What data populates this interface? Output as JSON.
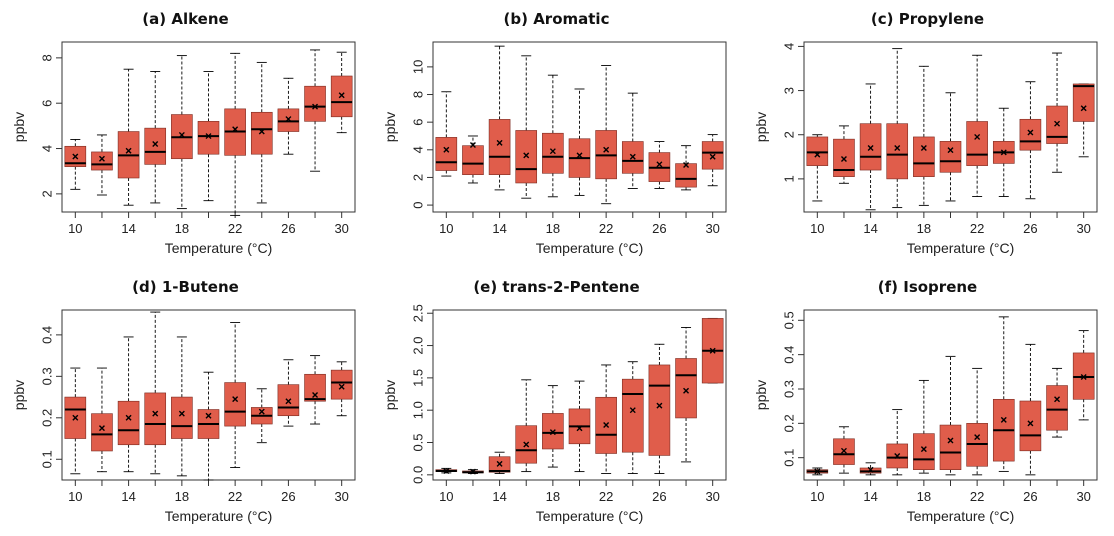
{
  "figure": {
    "box_color": "#e05d4b",
    "line_color": "#000000"
  },
  "chart_data": [
    {
      "type": "box",
      "title": "(a) Alkene",
      "xlabel": "Temperature (°C)",
      "ylabel": "ppbv",
      "x": [
        10,
        12,
        14,
        16,
        18,
        20,
        22,
        24,
        26,
        28,
        30
      ],
      "xtick_labels": [
        "10",
        "14",
        "18",
        "22",
        "26",
        "30"
      ],
      "xtick_values": [
        10,
        14,
        18,
        22,
        26,
        30
      ],
      "yticks": [
        2,
        4,
        6,
        8
      ],
      "ylim": [
        1.2,
        8.7
      ],
      "boxes": [
        {
          "x": 10,
          "min": 2.2,
          "q1": 3.2,
          "median": 3.35,
          "q3": 4.1,
          "max": 4.4,
          "mean": 3.65
        },
        {
          "x": 12,
          "min": 1.95,
          "q1": 3.05,
          "median": 3.3,
          "q3": 3.85,
          "max": 4.6,
          "mean": 3.55
        },
        {
          "x": 14,
          "min": 1.5,
          "q1": 2.7,
          "median": 3.7,
          "q3": 4.75,
          "max": 7.5,
          "mean": 3.9
        },
        {
          "x": 16,
          "min": 1.6,
          "q1": 3.3,
          "median": 3.85,
          "q3": 4.9,
          "max": 7.4,
          "mean": 4.2
        },
        {
          "x": 18,
          "min": 1.35,
          "q1": 3.55,
          "median": 4.5,
          "q3": 5.5,
          "max": 8.1,
          "mean": 4.6
        },
        {
          "x": 20,
          "min": 1.7,
          "q1": 3.75,
          "median": 4.55,
          "q3": 5.2,
          "max": 7.4,
          "mean": 4.55
        },
        {
          "x": 22,
          "min": 1.05,
          "q1": 3.7,
          "median": 4.75,
          "q3": 5.75,
          "max": 8.2,
          "mean": 4.85
        },
        {
          "x": 24,
          "min": 1.6,
          "q1": 3.75,
          "median": 4.85,
          "q3": 5.6,
          "max": 7.8,
          "mean": 4.75
        },
        {
          "x": 26,
          "min": 3.75,
          "q1": 4.75,
          "median": 5.2,
          "q3": 5.75,
          "max": 7.1,
          "mean": 5.3
        },
        {
          "x": 28,
          "min": 3.0,
          "q1": 5.2,
          "median": 5.85,
          "q3": 6.75,
          "max": 8.35,
          "mean": 5.85
        },
        {
          "x": 30,
          "min": 4.7,
          "q1": 5.4,
          "median": 6.05,
          "q3": 7.2,
          "max": 8.25,
          "mean": 6.35
        }
      ]
    },
    {
      "type": "box",
      "title": "(b) Aromatic",
      "xlabel": "Temperature (°C)",
      "ylabel": "ppbv",
      "x": [
        10,
        12,
        14,
        16,
        18,
        20,
        22,
        24,
        26,
        28,
        30
      ],
      "xtick_labels": [
        "10",
        "14",
        "18",
        "22",
        "26",
        "30"
      ],
      "xtick_values": [
        10,
        14,
        18,
        22,
        26,
        30
      ],
      "yticks": [
        0,
        2,
        4,
        6,
        8,
        10
      ],
      "ylim": [
        -0.5,
        11.8
      ],
      "boxes": [
        {
          "x": 10,
          "min": 2.1,
          "q1": 2.5,
          "median": 3.1,
          "q3": 4.9,
          "max": 8.2,
          "mean": 4.0
        },
        {
          "x": 12,
          "min": 1.6,
          "q1": 2.2,
          "median": 3.0,
          "q3": 4.3,
          "max": 5.0,
          "mean": 4.35
        },
        {
          "x": 14,
          "min": 1.1,
          "q1": 2.2,
          "median": 3.5,
          "q3": 6.2,
          "max": 11.5,
          "mean": 4.5
        },
        {
          "x": 16,
          "min": 0.5,
          "q1": 1.6,
          "median": 2.6,
          "q3": 5.4,
          "max": 10.8,
          "mean": 3.6
        },
        {
          "x": 18,
          "min": 0.6,
          "q1": 2.3,
          "median": 3.5,
          "q3": 5.2,
          "max": 9.4,
          "mean": 3.9
        },
        {
          "x": 20,
          "min": 0.7,
          "q1": 2.0,
          "median": 3.4,
          "q3": 4.8,
          "max": 8.4,
          "mean": 3.6
        },
        {
          "x": 22,
          "min": 0.1,
          "q1": 1.9,
          "median": 3.6,
          "q3": 5.4,
          "max": 10.1,
          "mean": 4.0
        },
        {
          "x": 24,
          "min": 1.2,
          "q1": 2.3,
          "median": 3.2,
          "q3": 4.6,
          "max": 8.1,
          "mean": 3.5
        },
        {
          "x": 26,
          "min": 1.2,
          "q1": 1.7,
          "median": 2.7,
          "q3": 3.8,
          "max": 4.6,
          "mean": 2.95
        },
        {
          "x": 28,
          "min": 1.1,
          "q1": 1.3,
          "median": 1.9,
          "q3": 3.0,
          "max": 4.3,
          "mean": 2.9
        },
        {
          "x": 30,
          "min": 1.4,
          "q1": 2.6,
          "median": 3.8,
          "q3": 4.6,
          "max": 5.1,
          "mean": 3.5
        }
      ]
    },
    {
      "type": "box",
      "title": "(c) Propylene",
      "xlabel": "Temperature (°C)",
      "ylabel": "ppbv",
      "x": [
        10,
        12,
        14,
        16,
        18,
        20,
        22,
        24,
        26,
        28,
        30
      ],
      "xtick_labels": [
        "10",
        "14",
        "18",
        "22",
        "26",
        "30"
      ],
      "xtick_values": [
        10,
        14,
        18,
        22,
        26,
        30
      ],
      "yticks": [
        1,
        2,
        3,
        4
      ],
      "ylim": [
        0.25,
        4.1
      ],
      "boxes": [
        {
          "x": 10,
          "min": 0.5,
          "q1": 1.3,
          "median": 1.6,
          "q3": 1.95,
          "max": 2.0,
          "mean": 1.55
        },
        {
          "x": 12,
          "min": 0.9,
          "q1": 1.05,
          "median": 1.2,
          "q3": 1.9,
          "max": 2.2,
          "mean": 1.45
        },
        {
          "x": 14,
          "min": 0.3,
          "q1": 1.2,
          "median": 1.5,
          "q3": 2.25,
          "max": 3.15,
          "mean": 1.7
        },
        {
          "x": 16,
          "min": 0.35,
          "q1": 1.0,
          "median": 1.55,
          "q3": 2.25,
          "max": 3.95,
          "mean": 1.7
        },
        {
          "x": 18,
          "min": 0.4,
          "q1": 1.05,
          "median": 1.35,
          "q3": 1.95,
          "max": 3.55,
          "mean": 1.7
        },
        {
          "x": 20,
          "min": 0.5,
          "q1": 1.15,
          "median": 1.4,
          "q3": 1.85,
          "max": 2.95,
          "mean": 1.65
        },
        {
          "x": 22,
          "min": 0.6,
          "q1": 1.3,
          "median": 1.55,
          "q3": 2.3,
          "max": 3.8,
          "mean": 1.95
        },
        {
          "x": 24,
          "min": 0.6,
          "q1": 1.35,
          "median": 1.6,
          "q3": 1.85,
          "max": 2.6,
          "mean": 1.6
        },
        {
          "x": 26,
          "min": 0.55,
          "q1": 1.65,
          "median": 1.85,
          "q3": 2.35,
          "max": 3.2,
          "mean": 2.05
        },
        {
          "x": 28,
          "min": 1.15,
          "q1": 1.8,
          "median": 1.95,
          "q3": 2.65,
          "max": 3.85,
          "mean": 2.25
        },
        {
          "x": 30,
          "min": 1.5,
          "q1": 2.3,
          "median": 3.1,
          "q3": 3.15,
          "max": 3.15,
          "mean": 2.6
        }
      ]
    },
    {
      "type": "box",
      "title": "(d) 1-Butene",
      "xlabel": "Temperature (°C)",
      "ylabel": "ppbv",
      "x": [
        10,
        12,
        14,
        16,
        18,
        20,
        22,
        24,
        26,
        28,
        30
      ],
      "xtick_labels": [
        "10",
        "14",
        "18",
        "22",
        "26",
        "30"
      ],
      "xtick_values": [
        10,
        14,
        18,
        22,
        26,
        30
      ],
      "yticks": [
        0.1,
        0.2,
        0.3,
        0.4
      ],
      "ylim": [
        0.05,
        0.46
      ],
      "boxes": [
        {
          "x": 10,
          "min": 0.065,
          "q1": 0.15,
          "median": 0.22,
          "q3": 0.25,
          "max": 0.32,
          "mean": 0.2
        },
        {
          "x": 12,
          "min": 0.07,
          "q1": 0.12,
          "median": 0.16,
          "q3": 0.21,
          "max": 0.32,
          "mean": 0.175
        },
        {
          "x": 14,
          "min": 0.07,
          "q1": 0.135,
          "median": 0.17,
          "q3": 0.24,
          "max": 0.395,
          "mean": 0.2
        },
        {
          "x": 16,
          "min": 0.065,
          "q1": 0.135,
          "median": 0.185,
          "q3": 0.26,
          "max": 0.455,
          "mean": 0.21
        },
        {
          "x": 18,
          "min": 0.06,
          "q1": 0.15,
          "median": 0.18,
          "q3": 0.25,
          "max": 0.395,
          "mean": 0.21
        },
        {
          "x": 20,
          "min": 0.05,
          "q1": 0.15,
          "median": 0.185,
          "q3": 0.22,
          "max": 0.31,
          "mean": 0.205
        },
        {
          "x": 22,
          "min": 0.08,
          "q1": 0.18,
          "median": 0.215,
          "q3": 0.285,
          "max": 0.43,
          "mean": 0.245
        },
        {
          "x": 24,
          "min": 0.14,
          "q1": 0.185,
          "median": 0.205,
          "q3": 0.225,
          "max": 0.27,
          "mean": 0.215
        },
        {
          "x": 26,
          "min": 0.18,
          "q1": 0.205,
          "median": 0.225,
          "q3": 0.28,
          "max": 0.34,
          "mean": 0.24
        },
        {
          "x": 28,
          "min": 0.185,
          "q1": 0.24,
          "median": 0.245,
          "q3": 0.305,
          "max": 0.35,
          "mean": 0.255
        },
        {
          "x": 30,
          "min": 0.205,
          "q1": 0.245,
          "median": 0.285,
          "q3": 0.315,
          "max": 0.335,
          "mean": 0.275
        }
      ]
    },
    {
      "type": "box",
      "title": "(e) trans-2-Pentene",
      "xlabel": "Temperature (°C)",
      "ylabel": "ppbv",
      "x": [
        10,
        12,
        14,
        16,
        18,
        20,
        22,
        24,
        26,
        28,
        30
      ],
      "xtick_labels": [
        "10",
        "14",
        "18",
        "22",
        "26",
        "30"
      ],
      "xtick_values": [
        10,
        14,
        18,
        22,
        26,
        30
      ],
      "yticks": [
        0.0,
        0.5,
        1.0,
        1.5,
        2.0,
        2.5
      ],
      "ytick_labels": [
        "0.0",
        "0.5",
        "1.0",
        "1.5",
        "2.0",
        "2.5"
      ],
      "ylim": [
        -0.08,
        2.55
      ],
      "boxes": [
        {
          "x": 10,
          "min": 0.03,
          "q1": 0.05,
          "median": 0.06,
          "q3": 0.08,
          "max": 0.1,
          "mean": 0.06
        },
        {
          "x": 12,
          "min": 0.02,
          "q1": 0.03,
          "median": 0.04,
          "q3": 0.06,
          "max": 0.08,
          "mean": 0.05
        },
        {
          "x": 14,
          "min": 0.02,
          "q1": 0.04,
          "median": 0.06,
          "q3": 0.28,
          "max": 0.35,
          "mean": 0.17
        },
        {
          "x": 16,
          "min": 0.05,
          "q1": 0.18,
          "median": 0.38,
          "q3": 0.76,
          "max": 1.47,
          "mean": 0.47
        },
        {
          "x": 18,
          "min": 0.12,
          "q1": 0.4,
          "median": 0.65,
          "q3": 0.95,
          "max": 1.38,
          "mean": 0.66
        },
        {
          "x": 20,
          "min": 0.05,
          "q1": 0.48,
          "median": 0.75,
          "q3": 1.02,
          "max": 1.45,
          "mean": 0.72
        },
        {
          "x": 22,
          "min": 0.02,
          "q1": 0.33,
          "median": 0.62,
          "q3": 1.2,
          "max": 1.7,
          "mean": 0.77
        },
        {
          "x": 24,
          "min": 0.02,
          "q1": 0.35,
          "median": 1.25,
          "q3": 1.48,
          "max": 1.75,
          "mean": 1.0
        },
        {
          "x": 26,
          "min": 0.02,
          "q1": 0.3,
          "median": 1.38,
          "q3": 1.7,
          "max": 2.02,
          "mean": 1.07
        },
        {
          "x": 28,
          "min": 0.2,
          "q1": 0.88,
          "median": 1.54,
          "q3": 1.8,
          "max": 2.28,
          "mean": 1.3
        },
        {
          "x": 30,
          "min": 1.42,
          "q1": 1.42,
          "median": 1.92,
          "q3": 2.42,
          "max": 2.42,
          "mean": 1.92
        }
      ]
    },
    {
      "type": "box",
      "title": "(f) Isoprene",
      "xlabel": "Temperature (°C)",
      "ylabel": "ppbv",
      "x": [
        10,
        12,
        14,
        16,
        18,
        20,
        22,
        24,
        26,
        28,
        30
      ],
      "xtick_labels": [
        "10",
        "14",
        "18",
        "22",
        "26",
        "30"
      ],
      "xtick_values": [
        10,
        14,
        18,
        22,
        26,
        30
      ],
      "yticks": [
        0.1,
        0.2,
        0.3,
        0.4,
        0.5
      ],
      "ylim": [
        0.035,
        0.53
      ],
      "boxes": [
        {
          "x": 10,
          "min": 0.05,
          "q1": 0.055,
          "median": 0.06,
          "q3": 0.065,
          "max": 0.07,
          "mean": 0.06
        },
        {
          "x": 12,
          "min": 0.055,
          "q1": 0.08,
          "median": 0.11,
          "q3": 0.155,
          "max": 0.19,
          "mean": 0.12
        },
        {
          "x": 14,
          "min": 0.05,
          "q1": 0.055,
          "median": 0.06,
          "q3": 0.07,
          "max": 0.085,
          "mean": 0.065
        },
        {
          "x": 16,
          "min": 0.05,
          "q1": 0.07,
          "median": 0.1,
          "q3": 0.14,
          "max": 0.24,
          "mean": 0.105
        },
        {
          "x": 18,
          "min": 0.055,
          "q1": 0.065,
          "median": 0.095,
          "q3": 0.17,
          "max": 0.325,
          "mean": 0.125
        },
        {
          "x": 20,
          "min": 0.05,
          "q1": 0.065,
          "median": 0.115,
          "q3": 0.195,
          "max": 0.395,
          "mean": 0.15
        },
        {
          "x": 22,
          "min": 0.05,
          "q1": 0.075,
          "median": 0.14,
          "q3": 0.2,
          "max": 0.36,
          "mean": 0.16
        },
        {
          "x": 24,
          "min": 0.06,
          "q1": 0.09,
          "median": 0.18,
          "q3": 0.27,
          "max": 0.51,
          "mean": 0.21
        },
        {
          "x": 26,
          "min": 0.05,
          "q1": 0.12,
          "median": 0.165,
          "q3": 0.265,
          "max": 0.43,
          "mean": 0.2
        },
        {
          "x": 28,
          "min": 0.16,
          "q1": 0.18,
          "median": 0.24,
          "q3": 0.31,
          "max": 0.36,
          "mean": 0.27
        },
        {
          "x": 30,
          "min": 0.21,
          "q1": 0.27,
          "median": 0.335,
          "q3": 0.405,
          "max": 0.47,
          "mean": 0.335
        }
      ]
    }
  ]
}
